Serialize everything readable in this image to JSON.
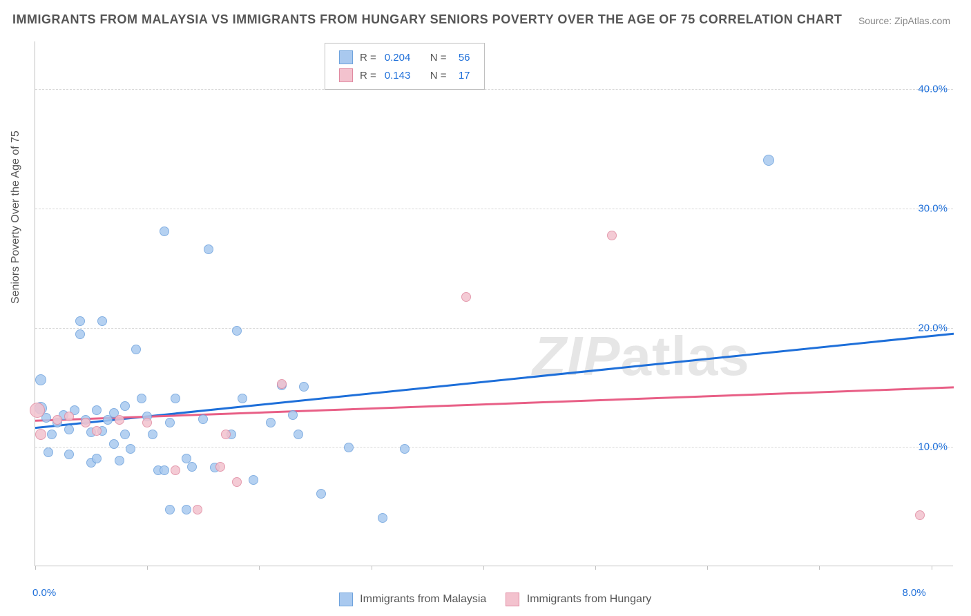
{
  "title": "IMMIGRANTS FROM MALAYSIA VS IMMIGRANTS FROM HUNGARY SENIORS POVERTY OVER THE AGE OF 75 CORRELATION CHART",
  "source_prefix": "Source: ",
  "source_link": "ZipAtlas.com",
  "y_axis_title": "Seniors Poverty Over the Age of 75",
  "watermark_zip": "ZIP",
  "watermark_atlas": "atlas",
  "chart": {
    "type": "scatter",
    "xlim": [
      0,
      8.2
    ],
    "ylim": [
      0,
      44
    ],
    "x_ticks": [
      0,
      1,
      2,
      3,
      4,
      5,
      6,
      7,
      8
    ],
    "x_tick_labels": {
      "0": "0.0%",
      "8": "8.0%"
    },
    "y_gridlines": [
      10,
      20,
      30,
      40
    ],
    "y_tick_labels": {
      "10": "10.0%",
      "20": "20.0%",
      "30": "30.0%",
      "40": "40.0%"
    },
    "background_color": "#ffffff",
    "grid_color": "#d8d8d8",
    "axis_color": "#c0c0c0",
    "label_color": "#1e6fd9",
    "series": [
      {
        "key": "malaysia",
        "label": "Immigrants from Malaysia",
        "fill": "#a9c9ef",
        "stroke": "#6fa3dd",
        "line_color": "#1e6fd9",
        "r_label": "R =",
        "r_value": "0.204",
        "n_label": "N =",
        "n_value": "56",
        "trend": {
          "x1": 0.0,
          "y1": 11.6,
          "x2": 8.2,
          "y2": 19.5
        },
        "points": [
          {
            "x": 0.05,
            "y": 13.2,
            "r": 9
          },
          {
            "x": 0.05,
            "y": 15.6,
            "r": 8
          },
          {
            "x": 0.1,
            "y": 12.4,
            "r": 7
          },
          {
            "x": 0.12,
            "y": 9.5,
            "r": 7
          },
          {
            "x": 0.15,
            "y": 11.0,
            "r": 7
          },
          {
            "x": 0.2,
            "y": 12.0,
            "r": 7
          },
          {
            "x": 0.25,
            "y": 12.6,
            "r": 7
          },
          {
            "x": 0.3,
            "y": 11.4,
            "r": 7
          },
          {
            "x": 0.35,
            "y": 13.0,
            "r": 7
          },
          {
            "x": 0.3,
            "y": 9.3,
            "r": 7
          },
          {
            "x": 0.4,
            "y": 20.5,
            "r": 7
          },
          {
            "x": 0.4,
            "y": 19.4,
            "r": 7
          },
          {
            "x": 0.45,
            "y": 12.2,
            "r": 7
          },
          {
            "x": 0.5,
            "y": 11.2,
            "r": 7
          },
          {
            "x": 0.5,
            "y": 8.6,
            "r": 7
          },
          {
            "x": 0.55,
            "y": 13.0,
            "r": 7
          },
          {
            "x": 0.55,
            "y": 9.0,
            "r": 7
          },
          {
            "x": 0.6,
            "y": 20.5,
            "r": 7
          },
          {
            "x": 0.6,
            "y": 11.3,
            "r": 7
          },
          {
            "x": 0.65,
            "y": 12.2,
            "r": 7
          },
          {
            "x": 0.7,
            "y": 10.2,
            "r": 7
          },
          {
            "x": 0.7,
            "y": 12.8,
            "r": 7
          },
          {
            "x": 0.75,
            "y": 8.8,
            "r": 7
          },
          {
            "x": 0.8,
            "y": 13.4,
            "r": 7
          },
          {
            "x": 0.8,
            "y": 11.0,
            "r": 7
          },
          {
            "x": 0.85,
            "y": 9.8,
            "r": 7
          },
          {
            "x": 0.9,
            "y": 18.1,
            "r": 7
          },
          {
            "x": 0.95,
            "y": 14.0,
            "r": 7
          },
          {
            "x": 1.0,
            "y": 12.5,
            "r": 7
          },
          {
            "x": 1.05,
            "y": 11.0,
            "r": 7
          },
          {
            "x": 1.1,
            "y": 8.0,
            "r": 7
          },
          {
            "x": 1.15,
            "y": 28.0,
            "r": 7
          },
          {
            "x": 1.15,
            "y": 8.0,
            "r": 7
          },
          {
            "x": 1.2,
            "y": 4.7,
            "r": 7
          },
          {
            "x": 1.2,
            "y": 12.0,
            "r": 7
          },
          {
            "x": 1.25,
            "y": 14.0,
            "r": 7
          },
          {
            "x": 1.35,
            "y": 9.0,
            "r": 7
          },
          {
            "x": 1.35,
            "y": 4.7,
            "r": 7
          },
          {
            "x": 1.4,
            "y": 8.3,
            "r": 7
          },
          {
            "x": 1.5,
            "y": 12.3,
            "r": 7
          },
          {
            "x": 1.55,
            "y": 26.5,
            "r": 7
          },
          {
            "x": 1.6,
            "y": 8.2,
            "r": 7
          },
          {
            "x": 1.75,
            "y": 11.0,
            "r": 7
          },
          {
            "x": 1.8,
            "y": 19.7,
            "r": 7
          },
          {
            "x": 1.85,
            "y": 14.0,
            "r": 7
          },
          {
            "x": 1.95,
            "y": 7.2,
            "r": 7
          },
          {
            "x": 2.1,
            "y": 12.0,
            "r": 7
          },
          {
            "x": 2.2,
            "y": 15.1,
            "r": 7
          },
          {
            "x": 2.3,
            "y": 12.6,
            "r": 7
          },
          {
            "x": 2.35,
            "y": 11.0,
            "r": 7
          },
          {
            "x": 2.4,
            "y": 15.0,
            "r": 7
          },
          {
            "x": 2.55,
            "y": 6.0,
            "r": 7
          },
          {
            "x": 2.8,
            "y": 9.9,
            "r": 7
          },
          {
            "x": 3.1,
            "y": 4.0,
            "r": 7
          },
          {
            "x": 3.3,
            "y": 9.8,
            "r": 7
          },
          {
            "x": 6.55,
            "y": 34.0,
            "r": 8
          }
        ]
      },
      {
        "key": "hungary",
        "label": "Immigrants from Hungary",
        "fill": "#f3c2ce",
        "stroke": "#e08aa1",
        "line_color": "#e85f86",
        "r_label": "R =",
        "r_value": "0.143",
        "n_label": "N =",
        "n_value": "17",
        "trend": {
          "x1": 0.0,
          "y1": 12.2,
          "x2": 8.2,
          "y2": 15.0
        },
        "points": [
          {
            "x": 0.02,
            "y": 13.0,
            "r": 11
          },
          {
            "x": 0.05,
            "y": 11.0,
            "r": 8
          },
          {
            "x": 0.2,
            "y": 12.2,
            "r": 7
          },
          {
            "x": 0.3,
            "y": 12.5,
            "r": 7
          },
          {
            "x": 0.45,
            "y": 12.0,
            "r": 7
          },
          {
            "x": 0.55,
            "y": 11.3,
            "r": 7
          },
          {
            "x": 0.75,
            "y": 12.2,
            "r": 7
          },
          {
            "x": 1.0,
            "y": 12.0,
            "r": 7
          },
          {
            "x": 1.25,
            "y": 8.0,
            "r": 7
          },
          {
            "x": 1.45,
            "y": 4.7,
            "r": 7
          },
          {
            "x": 1.65,
            "y": 8.3,
            "r": 7
          },
          {
            "x": 1.7,
            "y": 11.0,
            "r": 7
          },
          {
            "x": 1.8,
            "y": 7.0,
            "r": 7
          },
          {
            "x": 2.2,
            "y": 15.2,
            "r": 7
          },
          {
            "x": 3.85,
            "y": 22.5,
            "r": 7
          },
          {
            "x": 5.15,
            "y": 27.7,
            "r": 7
          },
          {
            "x": 7.9,
            "y": 4.2,
            "r": 7
          }
        ]
      }
    ]
  }
}
